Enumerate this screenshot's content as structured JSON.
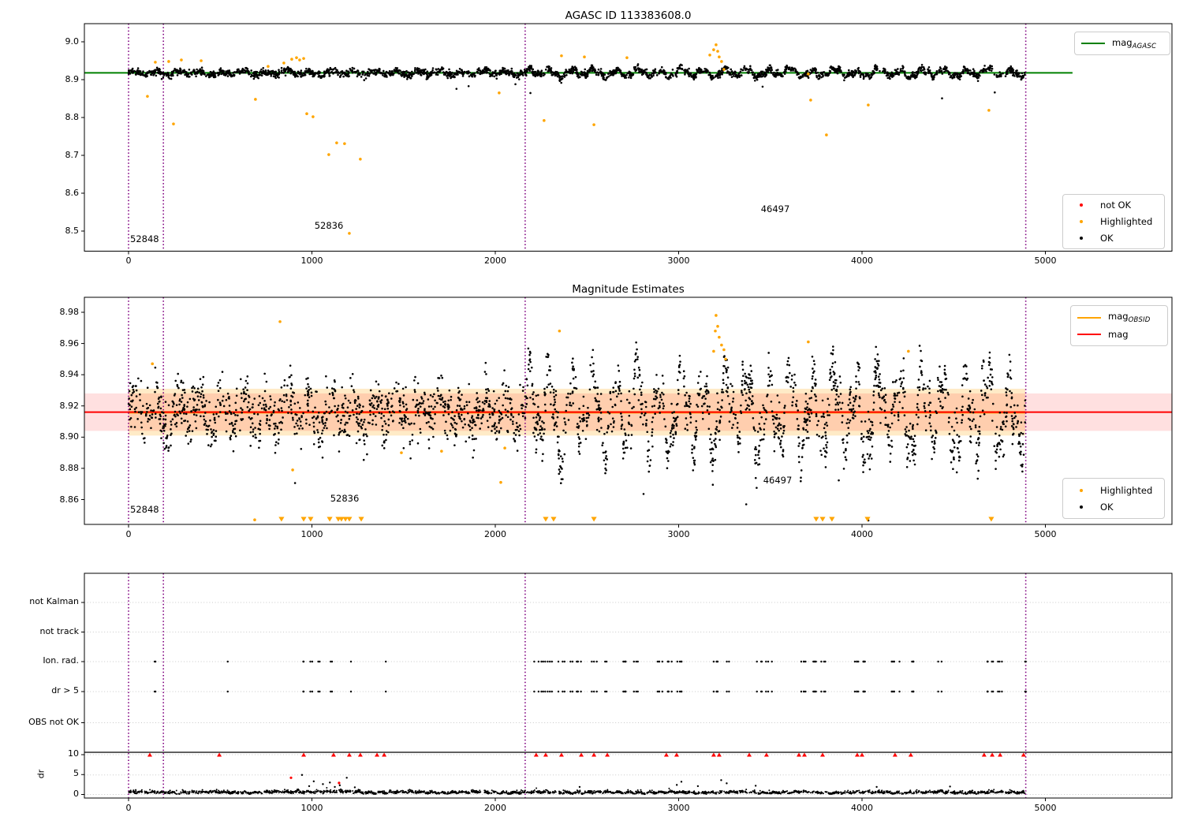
{
  "palette": {
    "green": "#008000",
    "red": "#ff0000",
    "orange": "#ffa500",
    "black": "#000000",
    "purple": "#800080",
    "band_pink": "rgba(255,0,0,0.12)",
    "band_orange": "rgba(255,165,0,0.22)",
    "grid": "#c8c8c8"
  },
  "legends": {
    "agasc": {
      "prefix": "mag",
      "sub": "AGASC"
    },
    "top_status": {
      "items": [
        {
          "label": "not OK",
          "color": "#ff0000"
        },
        {
          "label": "Highlighted",
          "color": "#ffa500"
        },
        {
          "label": "OK",
          "color": "#000000"
        }
      ]
    },
    "mid_lines": {
      "obsid": {
        "prefix": "mag",
        "sub": "OBSID",
        "color": "#ffa500"
      },
      "mag": {
        "label": "mag",
        "color": "#ff0000"
      }
    },
    "mid_status": {
      "items": [
        {
          "label": "Highlighted",
          "color": "#ffa500"
        },
        {
          "label": "OK",
          "color": "#000000"
        }
      ]
    }
  },
  "chart_data": [
    {
      "id": "agasc_mags",
      "type": "scatter",
      "title": "AGASC ID 113383608.0",
      "xlim": [
        -241,
        5690
      ],
      "ylim": [
        8.448,
        9.048
      ],
      "xticks": [
        0,
        1000,
        2000,
        3000,
        4000,
        5000
      ],
      "yticks": [
        "9.0",
        "8.9",
        "8.8",
        "8.7",
        "8.6",
        "8.5"
      ],
      "mag_agasc": 8.918,
      "mag_line_span": [
        -241,
        5148
      ],
      "obsid_boundaries": [
        0,
        190,
        2163,
        4893
      ],
      "annotations": [
        {
          "text": "52848"
        },
        {
          "text": "52836"
        },
        {
          "text": "46497"
        }
      ],
      "ok_generated": {
        "n": 2600,
        "x_range": [
          0,
          4890
        ],
        "base": 8.918,
        "sigma": 0.0045,
        "amp_left": 0.0045,
        "amp_right": 0.0085,
        "wave_change_x": 2163,
        "low_outlier_p": 0.003
      },
      "highlighted_points": [
        [
          103,
          8.856
        ],
        [
          146,
          8.946
        ],
        [
          219,
          8.948
        ],
        [
          245,
          8.783
        ],
        [
          288,
          8.952
        ],
        [
          396,
          8.95
        ],
        [
          692,
          8.848
        ],
        [
          761,
          8.935
        ],
        [
          847,
          8.944
        ],
        [
          890,
          8.954
        ],
        [
          916,
          8.958
        ],
        [
          933,
          8.952
        ],
        [
          955,
          8.956
        ],
        [
          972,
          8.81
        ],
        [
          1006,
          8.802
        ],
        [
          1092,
          8.702
        ],
        [
          1135,
          8.733
        ],
        [
          1178,
          8.731
        ],
        [
          1204,
          8.494
        ],
        [
          1264,
          8.69
        ],
        [
          2021,
          8.865
        ],
        [
          2266,
          8.792
        ],
        [
          2361,
          8.963
        ],
        [
          2486,
          8.96
        ],
        [
          2538,
          8.781
        ],
        [
          2718,
          8.958
        ],
        [
          3170,
          8.965
        ],
        [
          3191,
          8.979
        ],
        [
          3204,
          8.992
        ],
        [
          3213,
          8.975
        ],
        [
          3221,
          8.96
        ],
        [
          3234,
          8.948
        ],
        [
          3247,
          8.927
        ],
        [
          3707,
          8.915
        ],
        [
          3720,
          8.846
        ],
        [
          3806,
          8.754
        ],
        [
          4034,
          8.833
        ],
        [
          4692,
          8.819
        ]
      ],
      "not_ok_points": []
    },
    {
      "id": "magnitude_estimates",
      "type": "scatter",
      "title": "Magnitude Estimates",
      "xlim": [
        -241,
        5690
      ],
      "ylim": [
        8.844,
        8.9896
      ],
      "xticks": [
        0,
        1000,
        2000,
        3000,
        4000,
        5000
      ],
      "yticks": [
        "8.98",
        "8.96",
        "8.94",
        "8.92",
        "8.90",
        "8.88",
        "8.86"
      ],
      "mag": 8.916,
      "mag_obsid": 8.9165,
      "band_mag": [
        8.904,
        8.928
      ],
      "band_obsid": [
        8.901,
        8.931
      ],
      "obsid_line_span": [
        0,
        4890
      ],
      "obsid_boundaries": [
        0,
        190,
        2163,
        4893
      ],
      "annotations": [
        {
          "text": "52848"
        },
        {
          "text": "52836"
        },
        {
          "text": "46497"
        }
      ],
      "ok_generated": {
        "n": 2700,
        "x_range": [
          0,
          4890
        ],
        "base": 8.916,
        "sigma": 0.008,
        "amp_left": 0.008,
        "amp_right": 0.02,
        "wave_change_x": 2163,
        "low_outlier_p": 0.004
      },
      "highlighted_points": [
        [
          130,
          8.947
        ],
        [
          688,
          8.847
        ],
        [
          826,
          8.974
        ],
        [
          895,
          8.879
        ],
        [
          1488,
          8.89
        ],
        [
          1707,
          8.891
        ],
        [
          2030,
          8.871
        ],
        [
          2052,
          8.893
        ],
        [
          2350,
          8.968
        ],
        [
          3191,
          8.955
        ],
        [
          3200,
          8.968
        ],
        [
          3204,
          8.978
        ],
        [
          3213,
          8.971
        ],
        [
          3221,
          8.964
        ],
        [
          3234,
          8.959
        ],
        [
          3247,
          8.956
        ],
        [
          3256,
          8.95
        ],
        [
          3707,
          8.961
        ],
        [
          4253,
          8.955
        ]
      ],
      "clipped_low_x": [
        834,
        955,
        993,
        1097,
        1144,
        1161,
        1183,
        1204,
        1269,
        2275,
        2318,
        2538,
        3750,
        3785,
        3836,
        4030,
        4705
      ]
    },
    {
      "id": "flags_and_dr",
      "type": "scatter",
      "rows": [
        "not Kalman",
        "not track",
        "Ion. rad.",
        "dr > 5",
        "OBS not OK"
      ],
      "dr_ticks": [
        "10",
        "5",
        "0"
      ],
      "ylabel": "dr",
      "xticks": [
        0,
        1000,
        2000,
        3000,
        4000,
        5000
      ],
      "obsid_boundaries": [
        0,
        190,
        2163,
        4893
      ],
      "flag_event_x": [
        142,
        546,
        955,
        998,
        1041,
        1105,
        1213,
        1406,
        2219,
        2262,
        2292,
        2361,
        2408,
        2456,
        2538,
        2598,
        2715,
        2766,
        2895,
        2946,
        3002,
        3196,
        3269,
        3441,
        3492,
        3677,
        3737,
        3793,
        3974,
        4000,
        4159,
        4189,
        4266,
        4420,
        4675,
        4710,
        4753,
        4890
      ],
      "dr_clipped_x": [
        116,
        495,
        955,
        1118,
        1204,
        1264,
        1355,
        1394,
        2223,
        2275,
        2361,
        2469,
        2538,
        2611,
        2933,
        2989,
        3191,
        3221,
        3385,
        3479,
        3656,
        3686,
        3785,
        3974,
        4000,
        4180,
        4266,
        4666,
        4710,
        4753,
        4881
      ],
      "dr_outliers_black": [
        [
          946,
          4.9
        ],
        [
          985,
          2.1
        ],
        [
          1010,
          3.3
        ],
        [
          1060,
          2.6
        ],
        [
          1098,
          3.0
        ],
        [
          1125,
          1.9
        ],
        [
          1152,
          2.3
        ],
        [
          1190,
          4.2
        ],
        [
          1234,
          1.8
        ],
        [
          2460,
          1.9
        ],
        [
          2990,
          2.4
        ],
        [
          3015,
          3.2
        ],
        [
          3105,
          2.1
        ],
        [
          3232,
          3.6
        ],
        [
          3262,
          2.8
        ],
        [
          3420,
          2.2
        ],
        [
          4080,
          1.9
        ],
        [
          4480,
          2.0
        ]
      ],
      "dr_outliers_red": [
        [
          886,
          4.2
        ],
        [
          1148,
          2.9
        ]
      ],
      "dr_baseline": {
        "n": 2300,
        "x_range": [
          0,
          4890
        ],
        "base": 0.55,
        "sigma": 0.3,
        "bump_range": [
          880,
          1260
        ]
      }
    }
  ]
}
